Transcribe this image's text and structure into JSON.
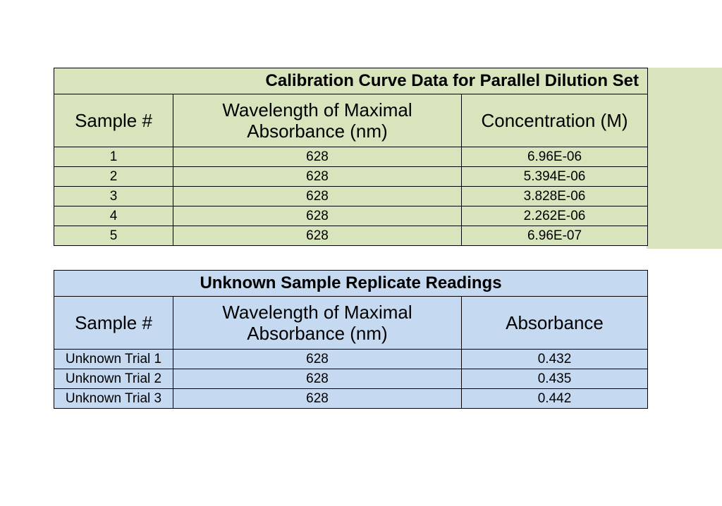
{
  "colors": {
    "green": "#d8e4bc",
    "blue": "#c5d9f1"
  },
  "calibration": {
    "title": "Calibration Curve Data for Parallel Dilution Set",
    "headers": {
      "sample": "Sample #",
      "wavelength_line1": "Wavelength of Maximal",
      "wavelength_line2": "Absorbance (nm)",
      "concentration": "Concentration (M)"
    },
    "rows": [
      {
        "sample": "1",
        "wavelength": "628",
        "value": "6.96E-06"
      },
      {
        "sample": "2",
        "wavelength": "628",
        "value": "5.394E-06"
      },
      {
        "sample": "3",
        "wavelength": "628",
        "value": "3.828E-06"
      },
      {
        "sample": "4",
        "wavelength": "628",
        "value": "2.262E-06"
      },
      {
        "sample": "5",
        "wavelength": "628",
        "value": "6.96E-07"
      }
    ]
  },
  "unknown": {
    "title": "Unknown Sample Replicate Readings",
    "headers": {
      "sample": "Sample #",
      "wavelength_line1": "Wavelength of Maximal",
      "wavelength_line2": "Absorbance (nm)",
      "absorbance": "Absorbance"
    },
    "rows": [
      {
        "sample": "Unknown Trial 1",
        "wavelength": "628",
        "value": "0.432"
      },
      {
        "sample": "Unknown Trial 2",
        "wavelength": "628",
        "value": "0.435"
      },
      {
        "sample": "Unknown Trial 3",
        "wavelength": "628",
        "value": "0.442"
      }
    ]
  }
}
